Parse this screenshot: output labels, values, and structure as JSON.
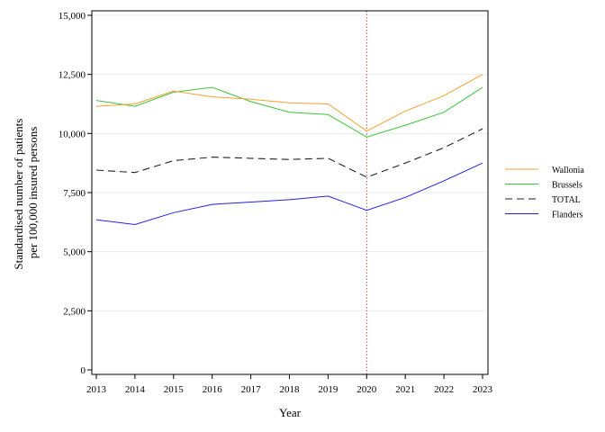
{
  "chart_data": {
    "type": "line",
    "x": [
      2013,
      2014,
      2015,
      2016,
      2017,
      2018,
      2019,
      2020,
      2021,
      2022,
      2023
    ],
    "x_tick_labels": [
      "2013",
      "2014",
      "2015",
      "2016",
      "2017",
      "2018",
      "2019",
      "2020",
      "2021",
      "2022",
      "2023"
    ],
    "y_ticks": [
      0,
      2500,
      5000,
      7500,
      10000,
      12500,
      15000
    ],
    "y_tick_labels": [
      "0",
      "2,500",
      "5,000",
      "7,500",
      "10,000",
      "12,500",
      "15,000"
    ],
    "xlim": [
      2013,
      2023
    ],
    "ylim": [
      0,
      15000
    ],
    "xlabel": "Year",
    "ylabel_lines": [
      "Standardised number of patients",
      "per 100,000 insured persons"
    ],
    "grid": "horizontal",
    "reference_line": {
      "x": 2020,
      "style": "dotted",
      "color": "#c0504d"
    },
    "legend_position": "right",
    "series": [
      {
        "name": "Wallonia",
        "color": "#f5a030",
        "dash": "solid",
        "values": [
          11150,
          11250,
          11800,
          11550,
          11450,
          11300,
          11250,
          10100,
          10950,
          11600,
          12500
        ]
      },
      {
        "name": "Brussels",
        "color": "#3dc43d",
        "dash": "solid",
        "values": [
          11400,
          11150,
          11750,
          11950,
          11350,
          10900,
          10800,
          9850,
          10350,
          10900,
          11950
        ]
      },
      {
        "name": "TOTAL",
        "color": "#222222",
        "dash": "dashed",
        "values": [
          8450,
          8350,
          8850,
          9000,
          8950,
          8900,
          8950,
          8150,
          8750,
          9400,
          10200
        ]
      },
      {
        "name": "Flanders",
        "color": "#2222dd",
        "dash": "solid",
        "values": [
          6350,
          6150,
          6650,
          7000,
          7100,
          7200,
          7350,
          6750,
          7300,
          8000,
          8750
        ]
      }
    ]
  }
}
